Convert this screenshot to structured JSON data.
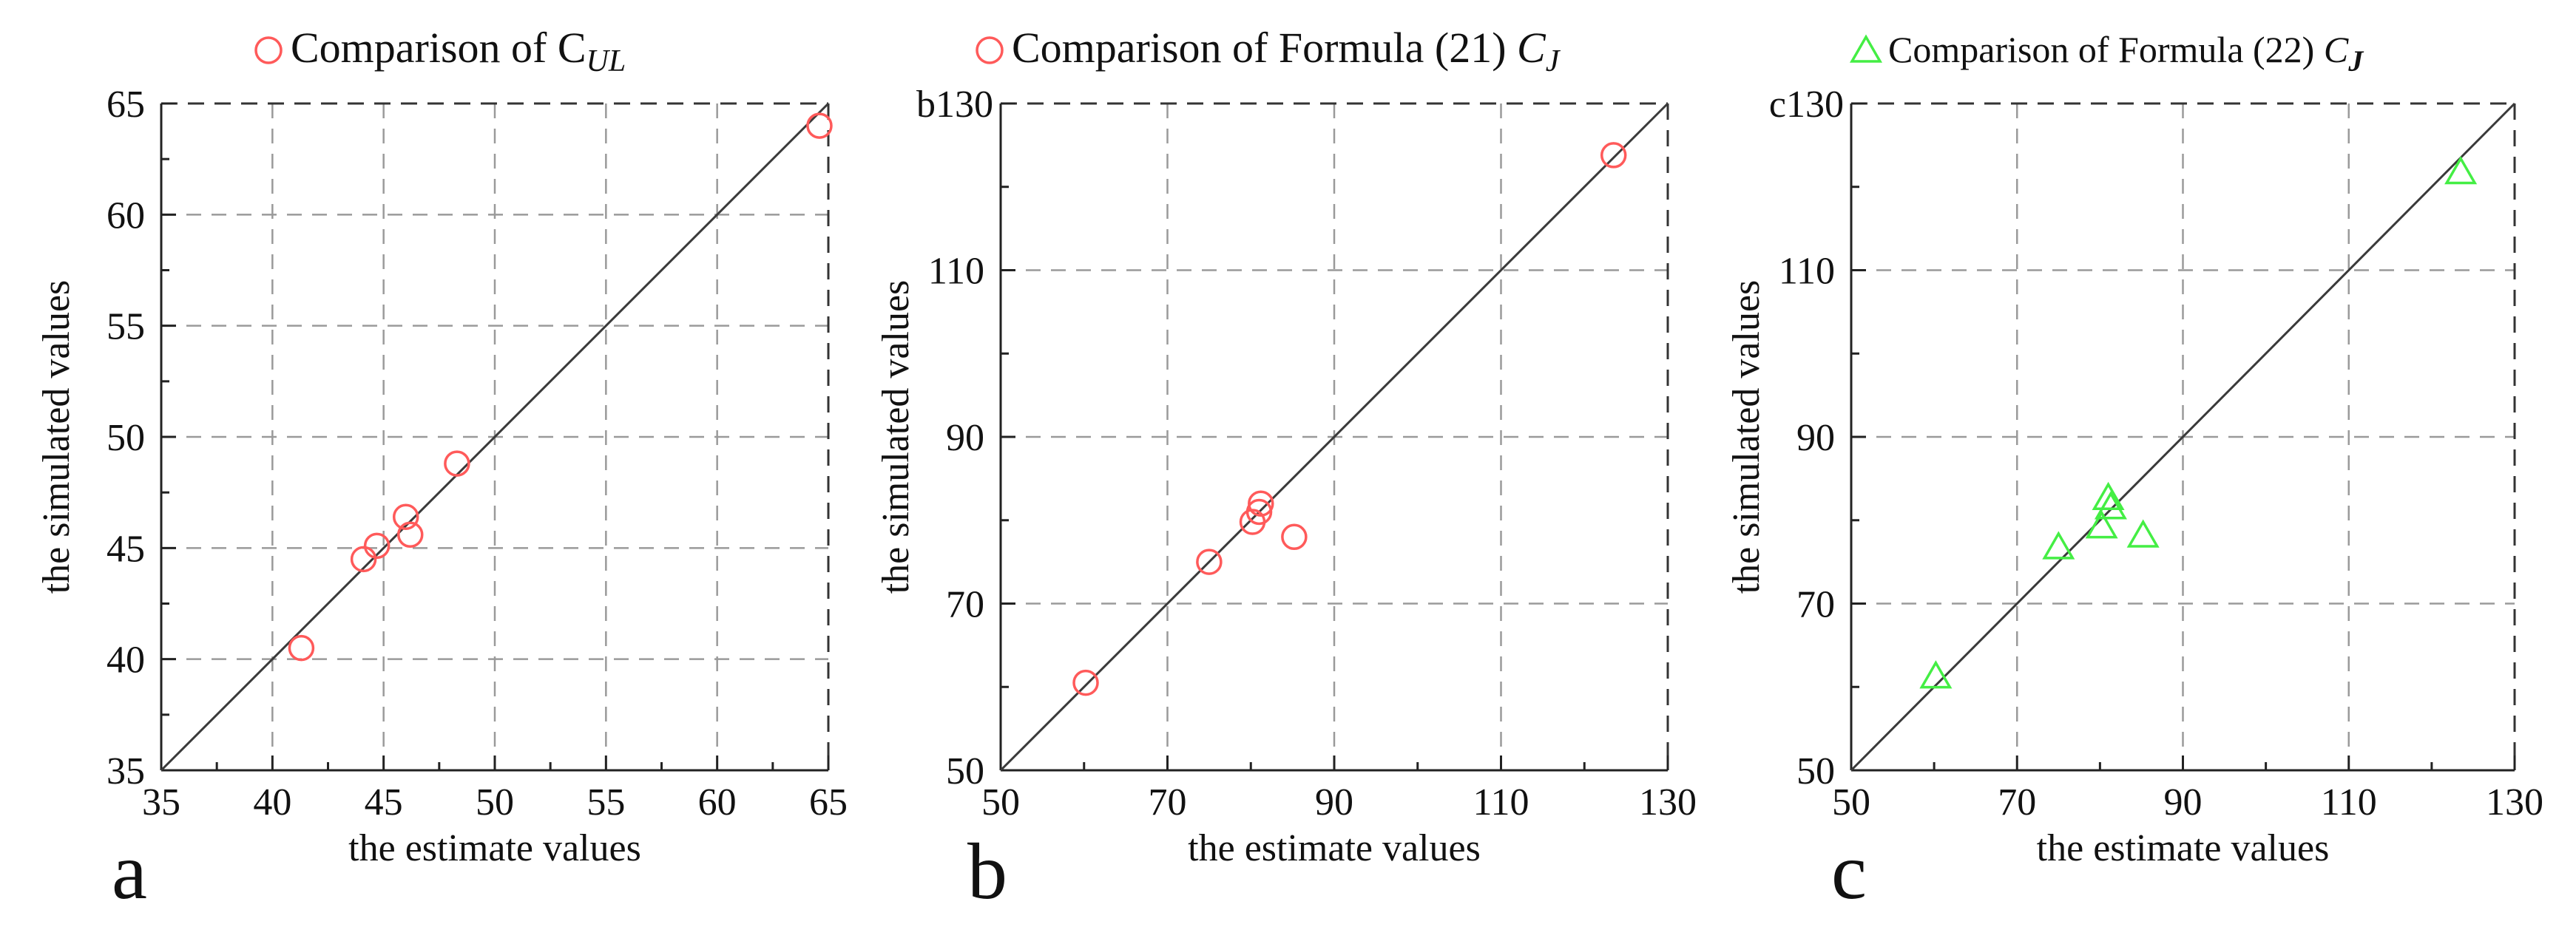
{
  "chart_data": [
    {
      "panel_id": "a",
      "type": "scatter",
      "panel_letter": "a",
      "corner_label": "",
      "legend": {
        "marker": "circle",
        "color": "#ff5a5a",
        "text": "Comparison of C",
        "subscript": "UL",
        "placement": "top"
      },
      "xlabel": "the estimate values",
      "ylabel": "the simulated values",
      "xlim": [
        35,
        65
      ],
      "ylim": [
        35,
        65
      ],
      "xticks": [
        35,
        40,
        45,
        50,
        55,
        60,
        65
      ],
      "yticks": [
        35,
        40,
        45,
        50,
        55,
        60,
        65
      ],
      "xtick_labels": [
        "35",
        "40",
        "45",
        "50",
        "55",
        "60",
        "65"
      ],
      "ytick_labels": [
        "35",
        "40",
        "45",
        "50",
        "55",
        "60",
        "65"
      ],
      "minor_step": 2.5,
      "grid": true,
      "reference_line": "y = x",
      "points": [
        {
          "x": 41.3,
          "y": 40.5
        },
        {
          "x": 44.1,
          "y": 44.5
        },
        {
          "x": 44.7,
          "y": 45.1
        },
        {
          "x": 46.0,
          "y": 46.4
        },
        {
          "x": 46.2,
          "y": 45.6
        },
        {
          "x": 48.3,
          "y": 48.8
        },
        {
          "x": 64.6,
          "y": 64.0
        }
      ]
    },
    {
      "panel_id": "b",
      "type": "scatter",
      "panel_letter": "b",
      "corner_label": "b130",
      "legend": {
        "marker": "circle",
        "color": "#ff5a5a",
        "text": "Comparison of Formula (21) ",
        "italic_text": "C",
        "subscript": "J",
        "placement": "top"
      },
      "xlabel": "the estimate values",
      "ylabel": "the simulated values",
      "xlim": [
        50,
        130
      ],
      "ylim": [
        50,
        130
      ],
      "xticks": [
        50,
        70,
        90,
        110,
        130
      ],
      "yticks": [
        50,
        70,
        90,
        110
      ],
      "xtick_labels": [
        "50",
        "70",
        "90",
        "110",
        "130"
      ],
      "ytick_labels": [
        "50",
        "70",
        "90",
        "110"
      ],
      "minor_step": 10,
      "grid": true,
      "reference_line": "y = x",
      "points": [
        {
          "x": 60.2,
          "y": 60.5
        },
        {
          "x": 75.0,
          "y": 75.0
        },
        {
          "x": 80.2,
          "y": 79.8
        },
        {
          "x": 81.0,
          "y": 81.0
        },
        {
          "x": 81.2,
          "y": 82.0
        },
        {
          "x": 85.2,
          "y": 78.0
        },
        {
          "x": 123.5,
          "y": 123.8
        }
      ]
    },
    {
      "panel_id": "c",
      "type": "scatter",
      "panel_letter": "c",
      "corner_label": "c130",
      "legend": {
        "marker": "triangle",
        "color": "#44ee44",
        "text": "Comparison of Formula (22) ",
        "italic_text": "C",
        "subscript": "J",
        "placement": "top"
      },
      "xlabel": "the estimate values",
      "ylabel": "the simulated values",
      "xlim": [
        50,
        130
      ],
      "ylim": [
        50,
        130
      ],
      "xticks": [
        50,
        70,
        90,
        110,
        130
      ],
      "yticks": [
        50,
        70,
        90,
        110
      ],
      "xtick_labels": [
        "50",
        "70",
        "90",
        "110",
        "130"
      ],
      "ytick_labels": [
        "50",
        "70",
        "90",
        "110"
      ],
      "minor_step": 10,
      "grid": true,
      "reference_line": "y = x",
      "points": [
        {
          "x": 60.2,
          "y": 61.3
        },
        {
          "x": 75.0,
          "y": 76.8
        },
        {
          "x": 80.2,
          "y": 79.3
        },
        {
          "x": 81.0,
          "y": 82.7
        },
        {
          "x": 81.3,
          "y": 81.6
        },
        {
          "x": 85.2,
          "y": 78.2
        },
        {
          "x": 123.5,
          "y": 121.8
        }
      ]
    }
  ]
}
